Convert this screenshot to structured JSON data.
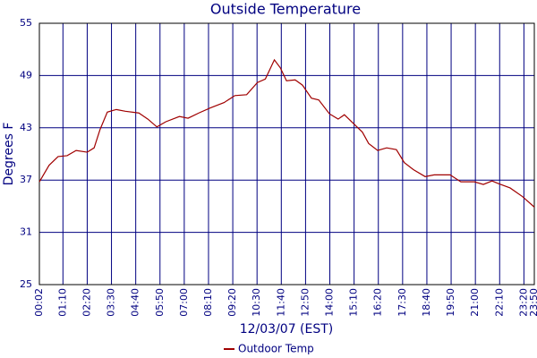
{
  "chart_data": {
    "type": "line",
    "title": "Outside Temperature",
    "x_label": "12/03/07 (EST)",
    "y_label": "Degrees F",
    "x": [
      "00:02",
      "00:30",
      "00:56",
      "01:22",
      "01:48",
      "02:20",
      "02:40",
      "02:57",
      "03:18",
      "03:44",
      "04:10",
      "04:49",
      "05:15",
      "05:41",
      "06:07",
      "06:46",
      "07:11",
      "07:42",
      "08:16",
      "08:55",
      "09:26",
      "10:00",
      "10:31",
      "10:54",
      "11:20",
      "11:37",
      "11:55",
      "12:20",
      "12:41",
      "13:07",
      "13:28",
      "13:59",
      "14:24",
      "14:42",
      "15:08",
      "15:34",
      "15:52",
      "16:18",
      "16:44",
      "17:12",
      "17:35",
      "18:01",
      "18:35",
      "19:01",
      "19:47",
      "20:18",
      "20:57",
      "21:23",
      "21:48",
      "22:06",
      "22:40",
      "23:16",
      "23:50"
    ],
    "series": [
      {
        "name": "Outdoor Temp",
        "color": "#a00000",
        "values": [
          36.8,
          38.7,
          39.7,
          39.8,
          40.4,
          40.2,
          40.7,
          42.8,
          44.8,
          45.1,
          44.9,
          44.7,
          44.0,
          43.1,
          43.7,
          44.3,
          44.1,
          44.7,
          45.3,
          45.9,
          46.7,
          46.8,
          48.2,
          48.6,
          50.8,
          49.9,
          48.4,
          48.5,
          47.9,
          46.4,
          46.2,
          44.6,
          44.0,
          44.5,
          43.5,
          42.5,
          41.2,
          40.4,
          40.7,
          40.5,
          39.0,
          38.2,
          37.4,
          37.6,
          37.6,
          36.8,
          36.8,
          36.5,
          36.9,
          36.6,
          36.1,
          35.1,
          33.9
        ]
      }
    ],
    "xlim": [
      "00:02",
      "23:50"
    ],
    "xticks": [
      "00:02",
      "01:10",
      "02:20",
      "03:30",
      "04:40",
      "05:50",
      "07:00",
      "08:10",
      "09:20",
      "10:30",
      "11:40",
      "12:50",
      "14:00",
      "15:10",
      "16:20",
      "17:30",
      "18:40",
      "19:50",
      "21:00",
      "22:10",
      "23:20",
      "23:50"
    ],
    "ylim": [
      25,
      55
    ],
    "yticks": [
      25,
      31,
      37,
      43,
      49,
      55
    ],
    "grid": true,
    "grid_color": "#000080",
    "legend": "bottom"
  }
}
